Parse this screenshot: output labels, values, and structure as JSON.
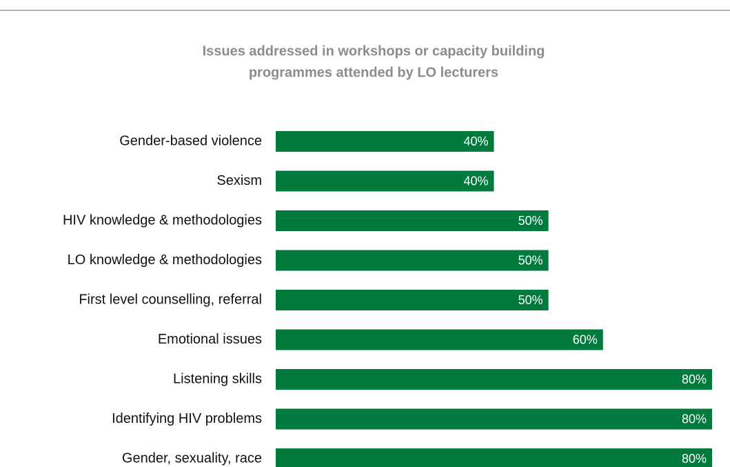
{
  "chart_data": {
    "type": "bar",
    "orientation": "horizontal",
    "title": [
      "Issues addressed in workshops or capacity building",
      "programmes attended by LO lecturers"
    ],
    "categories": [
      "Gender-based violence",
      "Sexism",
      "HIV knowledge & methodologies",
      "LO knowledge & methodologies",
      "First level counselling, referral",
      "Emotional issues",
      "Listening skills",
      "Identifying HIV problems",
      "Gender, sexuality, race"
    ],
    "values": [
      40,
      40,
      50,
      50,
      50,
      60,
      80,
      80,
      80
    ],
    "value_labels": [
      "40%",
      "40%",
      "50%",
      "50%",
      "50%",
      "60%",
      "80%",
      "80%",
      "80%"
    ],
    "color": "#007a3d",
    "xlim": [
      0,
      80
    ]
  }
}
